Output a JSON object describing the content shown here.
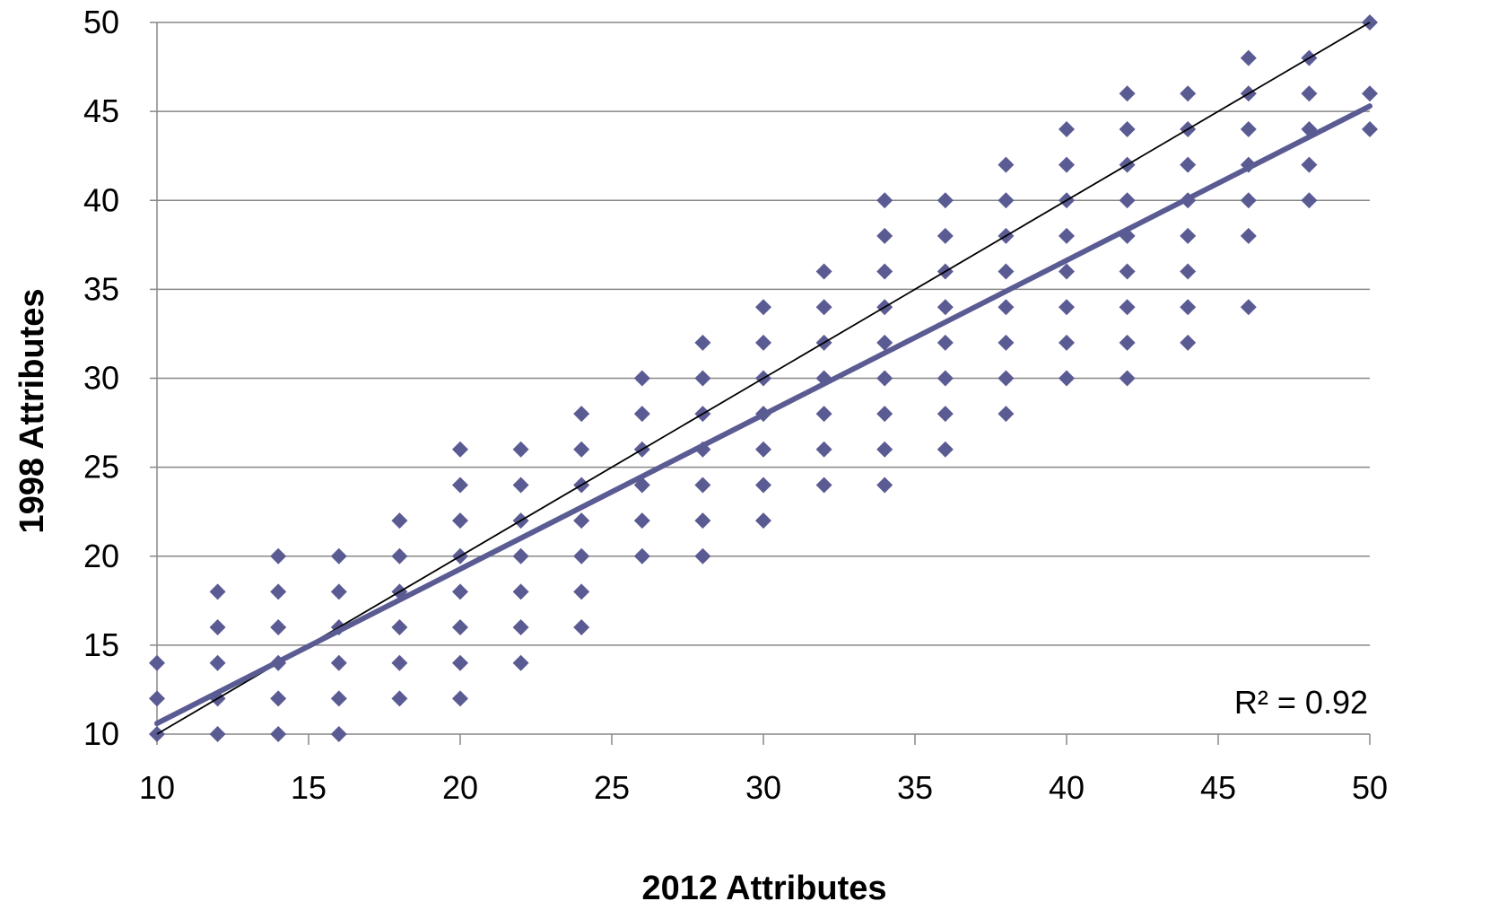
{
  "chart_data": {
    "type": "scatter",
    "title": "",
    "xlabel": "2012 Attributes",
    "ylabel": "1998 Attributes",
    "xlim": [
      10,
      50
    ],
    "ylim": [
      10,
      50
    ],
    "x_ticks": [
      "10",
      "15",
      "20",
      "25",
      "30",
      "35",
      "40",
      "45",
      "50"
    ],
    "y_ticks": [
      "10",
      "15",
      "20",
      "25",
      "30",
      "35",
      "40",
      "45",
      "50"
    ],
    "grid": "horizontal",
    "marker_color": "#5b5b94",
    "trend_color": "#5b5b94",
    "identity_color": "#000000",
    "r2_label": "R² = 0.92",
    "trendline": {
      "x": [
        10,
        50
      ],
      "y": [
        10.6,
        45.3
      ]
    },
    "identity_line": {
      "x": [
        10,
        50
      ],
      "y": [
        10,
        50
      ]
    },
    "points": [
      [
        10,
        10
      ],
      [
        10,
        12
      ],
      [
        10,
        14
      ],
      [
        12,
        10
      ],
      [
        12,
        12
      ],
      [
        12,
        14
      ],
      [
        12,
        16
      ],
      [
        12,
        18
      ],
      [
        14,
        10
      ],
      [
        14,
        12
      ],
      [
        14,
        14
      ],
      [
        14,
        16
      ],
      [
        14,
        18
      ],
      [
        14,
        20
      ],
      [
        16,
        10
      ],
      [
        16,
        12
      ],
      [
        16,
        14
      ],
      [
        16,
        16
      ],
      [
        16,
        18
      ],
      [
        16,
        20
      ],
      [
        18,
        12
      ],
      [
        18,
        14
      ],
      [
        18,
        16
      ],
      [
        18,
        18
      ],
      [
        18,
        20
      ],
      [
        18,
        22
      ],
      [
        20,
        12
      ],
      [
        20,
        14
      ],
      [
        20,
        16
      ],
      [
        20,
        18
      ],
      [
        20,
        20
      ],
      [
        20,
        22
      ],
      [
        20,
        24
      ],
      [
        20,
        26
      ],
      [
        22,
        14
      ],
      [
        22,
        16
      ],
      [
        22,
        18
      ],
      [
        22,
        20
      ],
      [
        22,
        22
      ],
      [
        22,
        24
      ],
      [
        22,
        26
      ],
      [
        24,
        16
      ],
      [
        24,
        18
      ],
      [
        24,
        20
      ],
      [
        24,
        22
      ],
      [
        24,
        24
      ],
      [
        24,
        26
      ],
      [
        24,
        28
      ],
      [
        26,
        20
      ],
      [
        26,
        22
      ],
      [
        26,
        24
      ],
      [
        26,
        26
      ],
      [
        26,
        28
      ],
      [
        26,
        30
      ],
      [
        28,
        20
      ],
      [
        28,
        22
      ],
      [
        28,
        24
      ],
      [
        28,
        26
      ],
      [
        28,
        28
      ],
      [
        28,
        30
      ],
      [
        28,
        32
      ],
      [
        30,
        22
      ],
      [
        30,
        24
      ],
      [
        30,
        26
      ],
      [
        30,
        28
      ],
      [
        30,
        30
      ],
      [
        30,
        32
      ],
      [
        30,
        34
      ],
      [
        32,
        24
      ],
      [
        32,
        26
      ],
      [
        32,
        28
      ],
      [
        32,
        30
      ],
      [
        32,
        32
      ],
      [
        32,
        34
      ],
      [
        32,
        36
      ],
      [
        34,
        24
      ],
      [
        34,
        26
      ],
      [
        34,
        28
      ],
      [
        34,
        30
      ],
      [
        34,
        32
      ],
      [
        34,
        34
      ],
      [
        34,
        36
      ],
      [
        34,
        38
      ],
      [
        34,
        40
      ],
      [
        36,
        26
      ],
      [
        36,
        28
      ],
      [
        36,
        30
      ],
      [
        36,
        32
      ],
      [
        36,
        34
      ],
      [
        36,
        36
      ],
      [
        36,
        38
      ],
      [
        36,
        40
      ],
      [
        38,
        28
      ],
      [
        38,
        30
      ],
      [
        38,
        32
      ],
      [
        38,
        34
      ],
      [
        38,
        36
      ],
      [
        38,
        38
      ],
      [
        38,
        40
      ],
      [
        38,
        42
      ],
      [
        40,
        30
      ],
      [
        40,
        32
      ],
      [
        40,
        34
      ],
      [
        40,
        36
      ],
      [
        40,
        38
      ],
      [
        40,
        40
      ],
      [
        40,
        42
      ],
      [
        40,
        44
      ],
      [
        42,
        30
      ],
      [
        42,
        32
      ],
      [
        42,
        34
      ],
      [
        42,
        36
      ],
      [
        42,
        38
      ],
      [
        42,
        40
      ],
      [
        42,
        42
      ],
      [
        42,
        44
      ],
      [
        42,
        46
      ],
      [
        44,
        32
      ],
      [
        44,
        34
      ],
      [
        44,
        36
      ],
      [
        44,
        38
      ],
      [
        44,
        40
      ],
      [
        44,
        42
      ],
      [
        44,
        44
      ],
      [
        44,
        46
      ],
      [
        46,
        34
      ],
      [
        46,
        38
      ],
      [
        46,
        40
      ],
      [
        46,
        42
      ],
      [
        46,
        44
      ],
      [
        46,
        46
      ],
      [
        46,
        48
      ],
      [
        48,
        40
      ],
      [
        48,
        42
      ],
      [
        48,
        44
      ],
      [
        48,
        46
      ],
      [
        48,
        48
      ],
      [
        50,
        44
      ],
      [
        50,
        46
      ],
      [
        50,
        50
      ]
    ]
  }
}
